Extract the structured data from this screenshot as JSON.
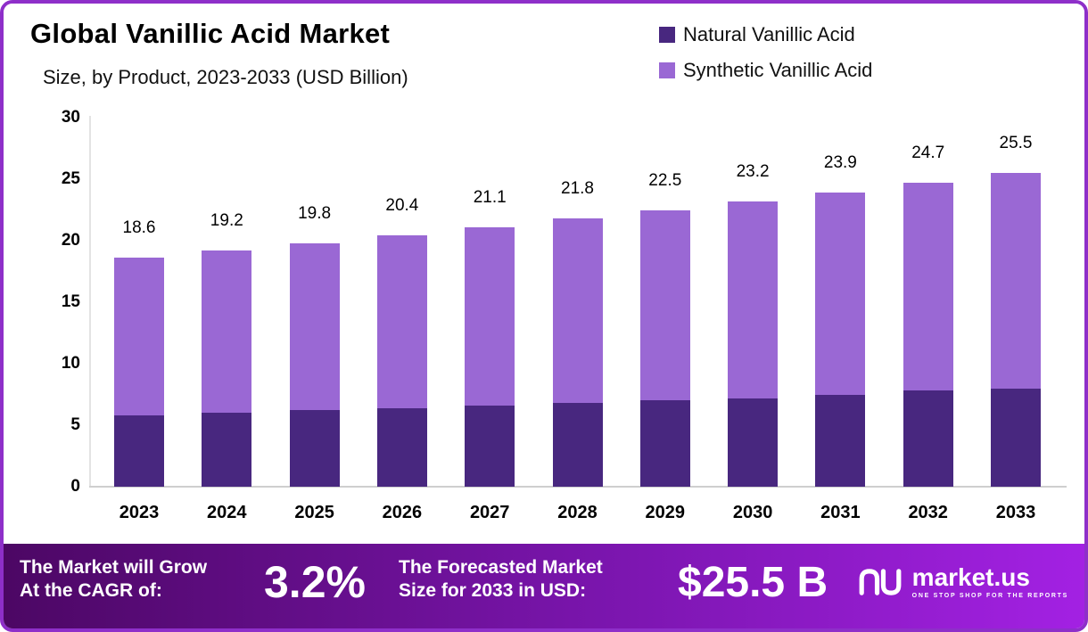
{
  "header": {
    "title": "Global Vanillic Acid Market",
    "subtitle": "Size, by Product, 2023-2033 (USD Billion)"
  },
  "legend": [
    {
      "label": "Natural Vanillic Acid",
      "color": "#48277f"
    },
    {
      "label": "Synthetic Vanillic Acid",
      "color": "#9a68d4"
    }
  ],
  "chart_data": {
    "type": "bar",
    "stacked": true,
    "title": "Global Vanillic Acid Market Size, by Product, 2023-2033 (USD Billion)",
    "categories": [
      "2023",
      "2024",
      "2025",
      "2026",
      "2027",
      "2028",
      "2029",
      "2030",
      "2031",
      "2032",
      "2033"
    ],
    "series": [
      {
        "name": "Natural Vanillic Acid",
        "color": "#48277f",
        "values": [
          5.8,
          6.0,
          6.2,
          6.4,
          6.6,
          6.8,
          7.0,
          7.2,
          7.5,
          7.8,
          8.0
        ]
      },
      {
        "name": "Synthetic Vanillic Acid",
        "color": "#9a68d4",
        "values": [
          12.8,
          13.2,
          13.6,
          14.0,
          14.5,
          15.0,
          15.5,
          16.0,
          16.4,
          16.9,
          17.5
        ]
      }
    ],
    "totals": [
      18.6,
      19.2,
      19.8,
      20.4,
      21.1,
      21.8,
      22.5,
      23.2,
      23.9,
      24.7,
      25.5
    ],
    "total_labels": [
      "18.6",
      "19.2",
      "19.8",
      "20.4",
      "21.1",
      "21.8",
      "22.5",
      "23.2",
      "23.9",
      "24.7",
      "25.5"
    ],
    "ylim": [
      0,
      30
    ],
    "yticks": [
      0,
      5,
      10,
      15,
      20,
      25,
      30
    ],
    "grid": false,
    "legend_position": "top-right"
  },
  "footer": {
    "cagr_line1": "The Market will Grow",
    "cagr_line2": "At the CAGR of:",
    "cagr_value": "3.2%",
    "forecast_line1": "The Forecasted Market",
    "forecast_line2": "Size for 2033 in USD:",
    "forecast_value": "$25.5 B",
    "brand": "market.us",
    "tagline": "ONE STOP SHOP FOR THE REPORTS"
  },
  "colors": {
    "border": "#8e2fc9",
    "footer_gradient_start": "#4c0764",
    "footer_gradient_end": "#a321e3",
    "natural": "#48277f",
    "synthetic": "#9a68d4"
  }
}
